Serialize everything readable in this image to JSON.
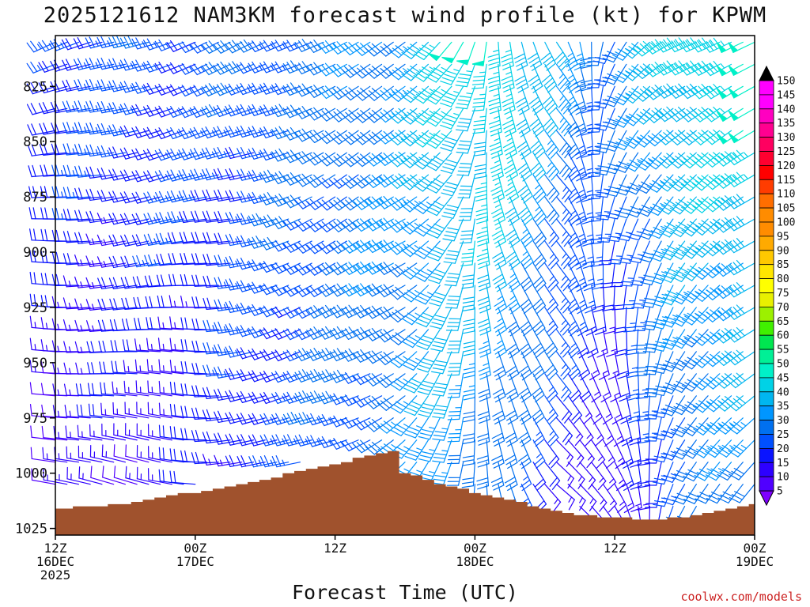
{
  "chart_data": {
    "type": "wind-barb-profile",
    "title": "2025121612 NAM3KM forecast wind profile (kt) for KPWM",
    "xlabel": "Forecast Time (UTC)",
    "ylabel": "",
    "credit": "coolwx.com/models",
    "y_axis": {
      "unit": "hPa",
      "range": [
        1028,
        802
      ],
      "ticks": [
        825,
        850,
        875,
        900,
        925,
        950,
        975,
        1000,
        1025
      ],
      "levels": [
        805,
        815,
        825,
        835,
        845,
        855,
        865,
        875,
        885,
        895,
        905,
        915,
        925,
        935,
        945,
        955,
        965,
        975,
        985,
        995,
        1005,
        1015,
        1025
      ]
    },
    "x_axis": {
      "unit": "hours since 2025-12-16 12Z",
      "range": [
        0,
        60
      ],
      "ticks": [
        {
          "hour": 0,
          "line1": "12Z",
          "line2": "16DEC",
          "line3": "2025"
        },
        {
          "hour": 12,
          "line1": "00Z",
          "line2": "17DEC",
          "line3": ""
        },
        {
          "hour": 24,
          "line1": "12Z",
          "line2": "",
          "line3": ""
        },
        {
          "hour": 36,
          "line1": "00Z",
          "line2": "18DEC",
          "line3": ""
        },
        {
          "hour": 48,
          "line1": "12Z",
          "line2": "",
          "line3": ""
        },
        {
          "hour": 60,
          "line1": "00Z",
          "line2": "19DEC",
          "line3": ""
        }
      ],
      "barb_step_hours": 1
    },
    "surface_pressure": [
      1016,
      1016,
      1015,
      1015,
      1015,
      1014,
      1014,
      1013,
      1012,
      1011,
      1010,
      1009,
      1009,
      1008,
      1007,
      1006,
      1005,
      1004,
      1003,
      1002,
      1000,
      999,
      998,
      997,
      996,
      995,
      993,
      992,
      991,
      990,
      1000,
      1001,
      1003,
      1005,
      1006,
      1007,
      1009,
      1010,
      1011,
      1012,
      1013,
      1015,
      1016,
      1017,
      1018,
      1019,
      1019,
      1020,
      1020,
      1020,
      1021,
      1021,
      1021,
      1020,
      1020,
      1019,
      1018,
      1017,
      1016,
      1015,
      1014
    ],
    "wind_speed_kt_by_level_and_time": "generated from keyframes below",
    "wind_keyframes": [
      {
        "hour": 0,
        "dir_low": 290,
        "dir_high": 250,
        "spd_low": 10,
        "spd_high": 25
      },
      {
        "hour": 12,
        "dir_low": 280,
        "dir_high": 250,
        "spd_low": 15,
        "spd_high": 25
      },
      {
        "hour": 24,
        "dir_low": 250,
        "dir_high": 240,
        "spd_low": 25,
        "spd_high": 30
      },
      {
        "hour": 30,
        "dir_low": 230,
        "dir_high": 240,
        "spd_low": 30,
        "spd_high": 35
      },
      {
        "hour": 34,
        "dir_low": 200,
        "dir_high": 220,
        "spd_low": 35,
        "spd_high": 45
      },
      {
        "hour": 38,
        "dir_low": 160,
        "dir_high": 170,
        "spd_low": 25,
        "spd_high": 50
      },
      {
        "hour": 43,
        "dir_low": 130,
        "dir_high": 150,
        "spd_low": 15,
        "spd_high": 35
      },
      {
        "hour": 48,
        "dir_low": 150,
        "dir_high": 210,
        "spd_low": 10,
        "spd_high": 30
      },
      {
        "hour": 54,
        "dir_low": 200,
        "dir_high": 240,
        "spd_low": 25,
        "spd_high": 45
      },
      {
        "hour": 60,
        "dir_low": 220,
        "dir_high": 250,
        "spd_low": 30,
        "spd_high": 50
      }
    ],
    "colorbar": {
      "labels": [
        "5",
        "10",
        "15",
        "20",
        "25",
        "30",
        "35",
        "40",
        "45",
        "50",
        "55",
        "60",
        "65",
        "70",
        "75",
        "80",
        "85",
        "90",
        "95",
        "100",
        "105",
        "110",
        "115",
        "120",
        "125",
        "130",
        "135",
        "140",
        "145",
        "150"
      ],
      "colors": [
        "#7f00ff",
        "#5000ff",
        "#2d00ff",
        "#0a14ff",
        "#0050ff",
        "#0070f0",
        "#0096ff",
        "#00b6f0",
        "#00d2e6",
        "#00f0c8",
        "#00f096",
        "#00e650",
        "#40f000",
        "#9cf000",
        "#e8f000",
        "#ffff00",
        "#ffe600",
        "#ffc800",
        "#ffaa00",
        "#ff8c00",
        "#ff8c00",
        "#ff6e00",
        "#ff3c00",
        "#ff0000",
        "#ff0030",
        "#ff0060",
        "#ff0090",
        "#ff00c0",
        "#ff00ff",
        "#ff00ff"
      ]
    },
    "terrain_color": "#a0522d"
  }
}
